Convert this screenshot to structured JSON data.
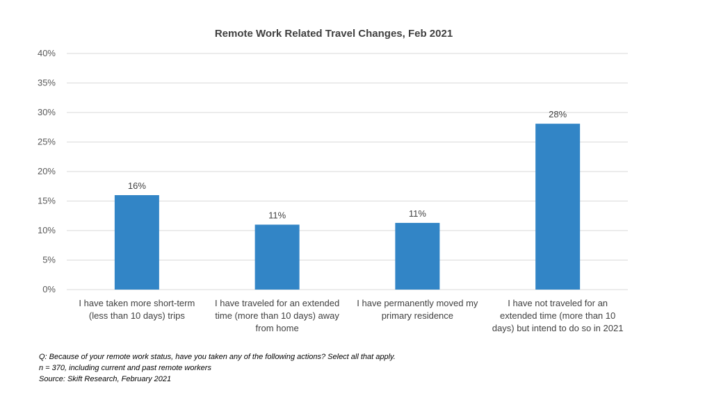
{
  "chart_data": {
    "type": "bar",
    "title": "Remote Work Related Travel Changes, Feb 2021",
    "xlabel": "",
    "ylabel": "",
    "ylim": [
      0,
      0.4
    ],
    "y_ticks": [
      "0%",
      "5%",
      "10%",
      "15%",
      "20%",
      "25%",
      "30%",
      "35%",
      "40%"
    ],
    "grid": true,
    "categories": [
      [
        "I have taken more short-term",
        "(less than 10 days) trips"
      ],
      [
        "I have traveled for an extended",
        "time (more than 10 days) away",
        "from home"
      ],
      [
        "I have permanently moved my",
        "primary residence"
      ],
      [
        "I have not traveled for an",
        "extended time (more than 10",
        "days) but intend to do so in 2021"
      ]
    ],
    "values": [
      0.16,
      0.11,
      0.113,
      0.281
    ],
    "data_labels": [
      "16%",
      "11%",
      "11%",
      "28%"
    ],
    "bar_color": "#3285c6",
    "gridline_color": "#d9d9d9"
  },
  "notes": {
    "question": "Q: Because of your remote work status, have you taken any of the following actions? Select all that apply.",
    "sample": "n = 370, including current and past remote workers",
    "source": "Source: Skift Research, February 2021"
  }
}
